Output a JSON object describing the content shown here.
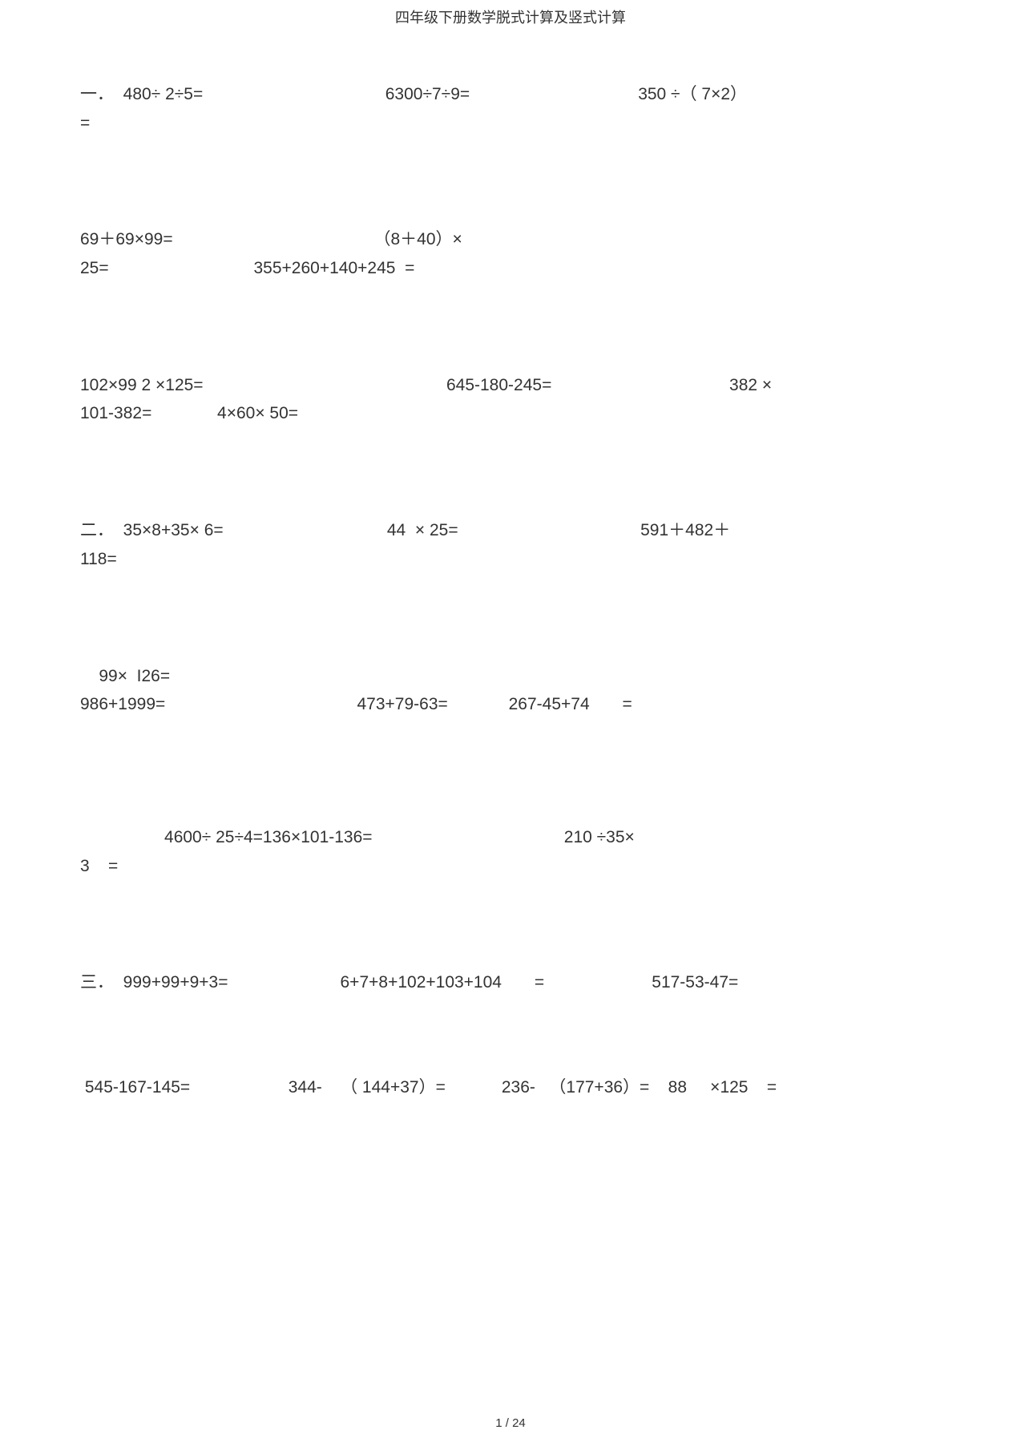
{
  "title": "四年级下册数学脱式计算及竖式计算",
  "footer": "1 / 24",
  "font": {
    "title_family": "SimSun",
    "title_size_pt": 14,
    "body_family": "Arial",
    "body_size_pt": 16,
    "color": "#333333",
    "background": "#ffffff"
  },
  "sections": {
    "s1": {
      "marker": "一．",
      "line1": "一．  480÷ 2÷5=                                       6300÷7÷9=                                    350 ÷（ 7×2）",
      "line2": "="
    },
    "s2": {
      "line1": "69＋69×99=                                           （8＋40）×",
      "line2": "25=                               355+260+140+245  ="
    },
    "s3": {
      "line1": "102×99 2 ×125=                                                    645-180-245=                                      382 ×",
      "line2": "101-382=              4×60× 50="
    },
    "s4": {
      "marker": "二．",
      "line1": "二．  35×8+35× 6=                                   44  × 25=                                       591＋482＋",
      "line2": "118="
    },
    "s5": {
      "line1": "    99×  I26=",
      "line2": "986+1999=                                         473+79-63=             267-45+74       ="
    },
    "s6": {
      "line1": "                  4600÷ 25÷4=136×101-136=                                         210 ÷35×",
      "line2": "3    ="
    },
    "s7": {
      "marker": "三．",
      "line1": "三．  999+99+9+3=                        6+7+8+102+103+104       =                       517-53-47="
    },
    "s8": {
      "line1": " 545-167-145=                     344-    （ 144+37）=            236-   （177+36）=    88     ×125    ="
    }
  }
}
